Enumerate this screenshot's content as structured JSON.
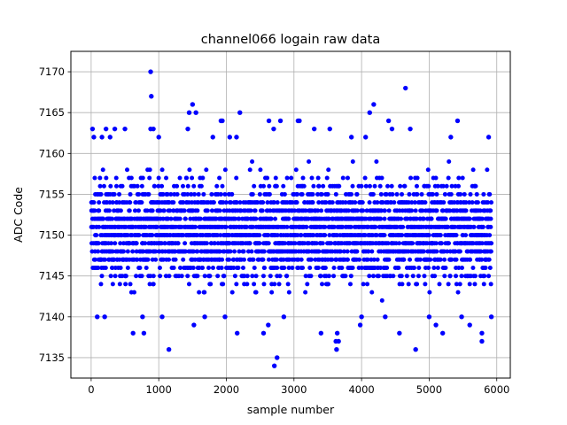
{
  "chart_data": {
    "type": "scatter",
    "title": "channel066 logain raw data",
    "xlabel": "sample number",
    "ylabel": "ADC Code",
    "xlim": [
      -300,
      6200
    ],
    "ylim": [
      7132.5,
      7172.5
    ],
    "x_ticks": [
      0,
      1000,
      2000,
      3000,
      4000,
      5000,
      6000
    ],
    "y_ticks": [
      7135,
      7140,
      7145,
      7150,
      7155,
      7160,
      7165,
      7170
    ],
    "grid": true,
    "marker_color": "#0000ff",
    "series": [
      {
        "sample_count": 5920,
        "dense_range": [
          7142,
          7159
        ],
        "points": [
          [
            880,
            7170
          ],
          [
            890,
            7167
          ],
          [
            4650,
            7168
          ],
          [
            4180,
            7166
          ],
          [
            1500,
            7166
          ],
          [
            4120,
            7165
          ],
          [
            2200,
            7165
          ],
          [
            1450,
            7165
          ],
          [
            1550,
            7165
          ],
          [
            3080,
            7164
          ],
          [
            2800,
            7164
          ],
          [
            4400,
            7164
          ],
          [
            5420,
            7164
          ],
          [
            1920,
            7164
          ],
          [
            1940,
            7164
          ],
          [
            20,
            7163
          ],
          [
            220,
            7163
          ],
          [
            350,
            7163
          ],
          [
            500,
            7163
          ],
          [
            880,
            7163
          ],
          [
            920,
            7163
          ],
          [
            1430,
            7163
          ],
          [
            2700,
            7163
          ],
          [
            3300,
            7163
          ],
          [
            3530,
            7163
          ],
          [
            4450,
            7163
          ],
          [
            4720,
            7163
          ],
          [
            40,
            7162
          ],
          [
            160,
            7162
          ],
          [
            280,
            7162
          ],
          [
            1000,
            7162
          ],
          [
            1800,
            7162
          ],
          [
            2050,
            7162
          ],
          [
            2150,
            7162
          ],
          [
            3850,
            7162
          ],
          [
            4060,
            7162
          ],
          [
            5320,
            7162
          ],
          [
            5880,
            7162
          ],
          [
            2630,
            7164
          ],
          [
            3060,
            7164
          ],
          [
            2710,
            7134
          ],
          [
            2750,
            7135
          ],
          [
            1150,
            7136
          ],
          [
            3630,
            7136
          ],
          [
            4800,
            7136
          ],
          [
            3620,
            7137
          ],
          [
            3660,
            7137
          ],
          [
            620,
            7138
          ],
          [
            780,
            7138
          ],
          [
            2160,
            7138
          ],
          [
            2550,
            7138
          ],
          [
            3640,
            7138
          ],
          [
            4560,
            7138
          ],
          [
            5200,
            7138
          ],
          [
            5780,
            7138
          ],
          [
            5780,
            7137
          ],
          [
            90,
            7140
          ],
          [
            200,
            7140
          ],
          [
            1050,
            7140
          ],
          [
            1680,
            7140
          ],
          [
            1980,
            7140
          ],
          [
            2850,
            7140
          ],
          [
            4000,
            7140
          ],
          [
            5000,
            7140
          ],
          [
            5480,
            7140
          ],
          [
            5920,
            7140
          ],
          [
            760,
            7140
          ],
          [
            1520,
            7139
          ],
          [
            2620,
            7139
          ],
          [
            3400,
            7138
          ],
          [
            3980,
            7139
          ],
          [
            5100,
            7139
          ],
          [
            5600,
            7139
          ],
          [
            4350,
            7140
          ]
        ]
      }
    ]
  }
}
